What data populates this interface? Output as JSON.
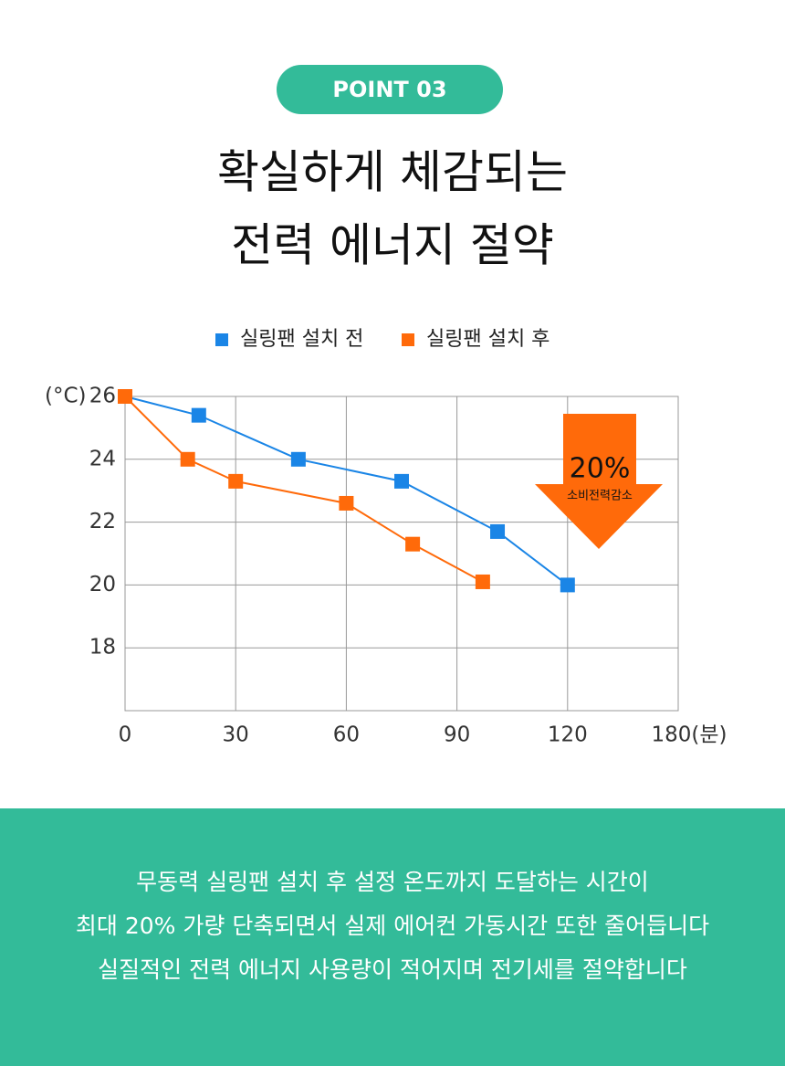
{
  "badge": "POINT 03",
  "heading": [
    "확실하게 체감되는",
    "전력 에너지 절약"
  ],
  "chart_data": {
    "type": "line",
    "y_unit_label": "(°C)",
    "x": [],
    "series": [
      {
        "name": "실링팬 설치 전",
        "color": "#1a85e6",
        "x": [
          0,
          20,
          47,
          75,
          101,
          120
        ],
        "values": [
          26,
          25.4,
          24,
          23.3,
          21.7,
          20
        ]
      },
      {
        "name": "실링팬 설치 후",
        "color": "#ff6a0a",
        "x": [
          0,
          17,
          30,
          60,
          78,
          97
        ],
        "values": [
          26,
          24,
          23.3,
          22.6,
          21.3,
          20.1
        ]
      }
    ],
    "xlim": [
      0,
      180
    ],
    "xticks": [
      0,
      30,
      60,
      90,
      120,
      {
        "value": 180,
        "label": "180(분)"
      }
    ],
    "ylim": [
      16,
      26
    ],
    "yticks": [
      26,
      24,
      22,
      20,
      18
    ],
    "grid": true,
    "annotation": {
      "value_label": "20%",
      "text": "소비전력감소",
      "color": "#ff6a0a"
    }
  },
  "footer": [
    "무동력 실링팬 설치 후 설정 온도까지 도달하는 시간이",
    "최대 20% 가량 단축되면서 실제 에어컨 가동시간 또한 줄어듭니다",
    "실질적인 전력 에너지 사용량이 적어지며 전기세를 절약합니다"
  ]
}
